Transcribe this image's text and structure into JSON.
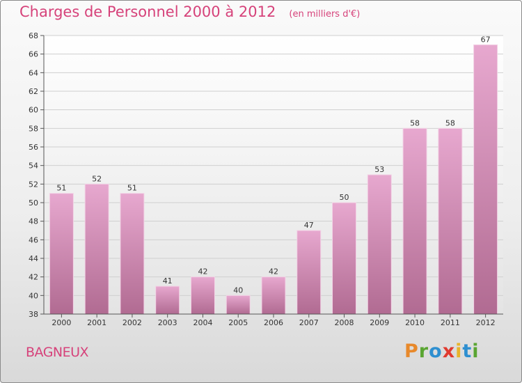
{
  "chart_data": {
    "type": "bar",
    "title": "Charges de Personnel 2000 à 2012",
    "subtitle": "(en milliers d'€)",
    "categories": [
      "2000",
      "2001",
      "2002",
      "2003",
      "2004",
      "2005",
      "2006",
      "2007",
      "2008",
      "2009",
      "2010",
      "2011",
      "2012"
    ],
    "values": [
      51,
      52,
      51,
      41,
      42,
      40,
      42,
      47,
      50,
      53,
      58,
      58,
      67
    ],
    "ylim": [
      38,
      68
    ],
    "yticks": [
      38,
      40,
      42,
      44,
      46,
      48,
      50,
      52,
      54,
      56,
      58,
      60,
      62,
      64,
      66,
      68
    ],
    "grid": true,
    "colors": {
      "bar_top": "#e7a8cf",
      "bar_bottom": "#b16b92",
      "accent": "#d6427a"
    }
  },
  "footer": {
    "commune": "BAGNEUX",
    "logo_letters": [
      {
        "char": "P",
        "color": "#e8892b"
      },
      {
        "char": "r",
        "color": "#5aa532"
      },
      {
        "char": "o",
        "color": "#2e8fd0"
      },
      {
        "char": "x",
        "color": "#e03a2f"
      },
      {
        "char": "i",
        "color": "#e8b42b"
      },
      {
        "char": "t",
        "color": "#2e8fd0"
      },
      {
        "char": "i",
        "color": "#5aa532"
      }
    ]
  }
}
